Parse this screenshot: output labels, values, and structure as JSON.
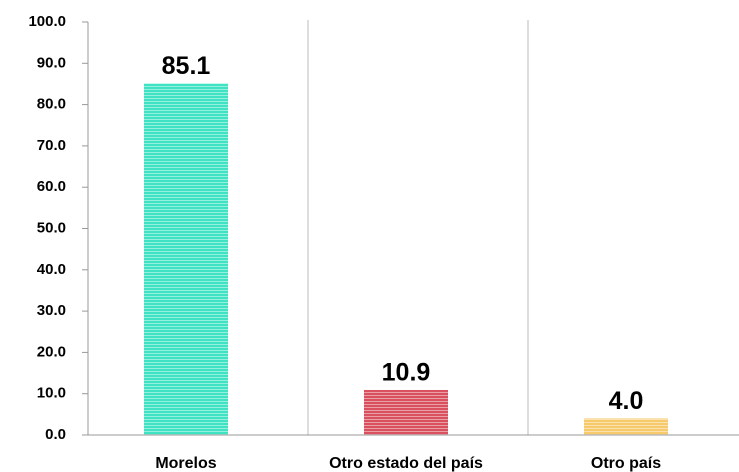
{
  "chart_data": {
    "type": "bar",
    "categories": [
      "Morelos",
      "Otro estado del país",
      "Otro país"
    ],
    "values": [
      85.1,
      10.9,
      4.0
    ],
    "value_labels": [
      "85.1",
      "10.9",
      "4.0"
    ],
    "colors": [
      "#3fe3c3",
      "#d9505e",
      "#f6c96b"
    ],
    "ylim": [
      0,
      100
    ],
    "yticks": [
      {
        "value": 0,
        "label": "0.0"
      },
      {
        "value": 10,
        "label": "10.0"
      },
      {
        "value": 20,
        "label": "20.0"
      },
      {
        "value": 30,
        "label": "30.0"
      },
      {
        "value": 40,
        "label": "40.0"
      },
      {
        "value": 50,
        "label": "50.0"
      },
      {
        "value": 60,
        "label": "60.0"
      },
      {
        "value": 70,
        "label": "70.0"
      },
      {
        "value": 80,
        "label": "80.0"
      },
      {
        "value": 90,
        "label": "90.0"
      },
      {
        "value": 100,
        "label": "100.0"
      }
    ],
    "grid": false
  }
}
